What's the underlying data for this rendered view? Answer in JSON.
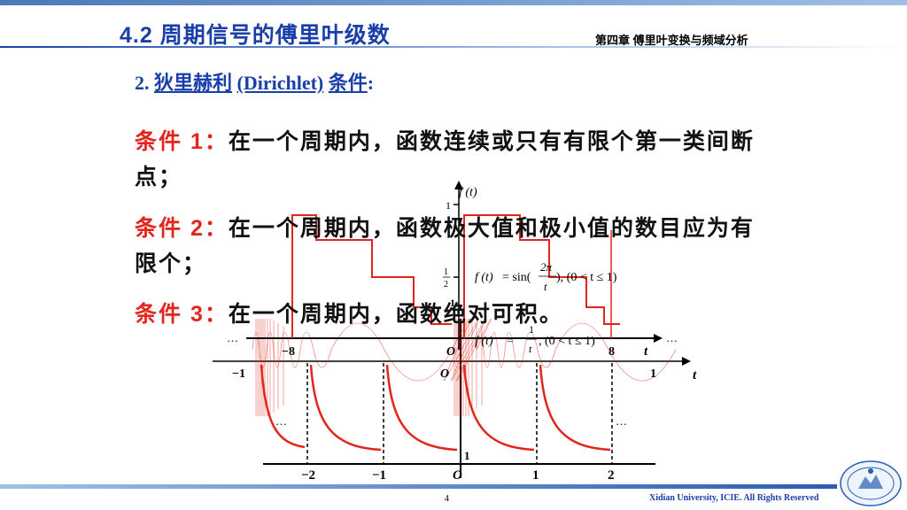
{
  "header": {
    "title": "4.2 周期信号的傅里叶级数",
    "chapter": "第四章 傅里叶变换与频域分析"
  },
  "subtitle": {
    "number": "2.",
    "name_cn": "狄里赫利",
    "name_en": "(Dirichlet)",
    "suffix": "条件",
    "colon": ":"
  },
  "conditions": [
    {
      "label": "条件 1：",
      "text": "在一个周期内，函数连续或只有有限个第一类间断点；"
    },
    {
      "label": "条件 2：",
      "text": "在一个周期内，函数极大值和极小值的数目应为有限个；"
    },
    {
      "label": "条件 3：",
      "text": "在一个周期内，函数绝对可积。"
    }
  ],
  "figure": {
    "ft_label": "f (t)",
    "tick_one": "1",
    "tick_half_num": "1",
    "tick_half_den": "2",
    "sin_formula": "f (t) = sin(2π/t), (0 < t ≤ 1)",
    "sin_formula_f": "f (t)",
    "sin_formula_eq": "= sin(",
    "sin_formula_num": "2π",
    "sin_formula_den": "t",
    "sin_formula_tail": "), (0 < t ≤ 1)",
    "recip_formula_f": "f (t)",
    "recip_formula_eq": "=",
    "recip_formula_num": "1",
    "recip_formula_den": "t",
    "recip_formula_tail": ", (0 < t ≤ 1)",
    "dots": "…",
    "axis_t": "t",
    "origin": "O",
    "ticks_step": [
      "−8",
      "8"
    ],
    "ticks_sin": [
      "−1",
      "1"
    ],
    "ticks_recip": [
      "−2",
      "−1",
      "1",
      "2"
    ],
    "recip_y_label": "1"
  },
  "footer": {
    "page": "4",
    "text": "Xidian University, ICIE. All Rights Reserved"
  }
}
